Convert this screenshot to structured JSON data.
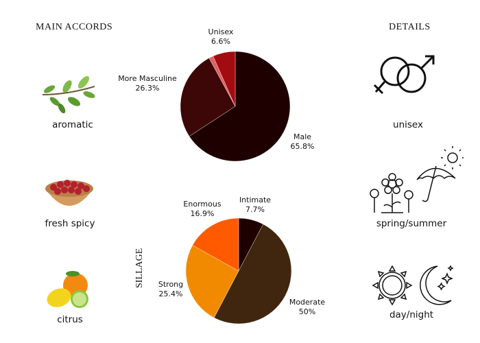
{
  "left": {
    "heading": "MAIN ACCORDS",
    "accords": [
      {
        "label": "aromatic",
        "icon": "herb-sprig-icon"
      },
      {
        "label": "fresh spicy",
        "icon": "berry-bowl-icon"
      },
      {
        "label": "citrus",
        "icon": "citrus-fruit-icon"
      }
    ]
  },
  "right": {
    "heading": "DETAILS",
    "details": [
      {
        "label": "unisex",
        "icon": "gender-symbols-icon"
      },
      {
        "label": "spring/summer",
        "icon": "flowers-umbrella-sun-icon"
      },
      {
        "label": "day/night",
        "icon": "sun-moon-icon"
      }
    ]
  },
  "chart_data": [
    {
      "type": "pie",
      "title": "",
      "slices": [
        {
          "name": "Male",
          "value": 65.8,
          "label": "65.8%",
          "color": "#1e0000"
        },
        {
          "name": "More Masculine",
          "value": 26.3,
          "label": "26.3%",
          "color": "#3d0708"
        },
        {
          "name": "",
          "value": 1.3,
          "label": "",
          "color": "#e0605e"
        },
        {
          "name": "Unisex",
          "value": 6.6,
          "label": "6.6%",
          "color": "#a20c10"
        }
      ]
    },
    {
      "type": "pie",
      "title": "SILLAGE",
      "slices": [
        {
          "name": "Intimate",
          "value": 7.7,
          "label": "7.7%",
          "color": "#1e0000"
        },
        {
          "name": "Moderate",
          "value": 50,
          "label": "50%",
          "color": "#40260e"
        },
        {
          "name": "Strong",
          "value": 25.4,
          "label": "25.4%",
          "color": "#f28a00"
        },
        {
          "name": "Enormous",
          "value": 16.9,
          "label": "16.9%",
          "color": "#ff5a00"
        }
      ]
    }
  ]
}
